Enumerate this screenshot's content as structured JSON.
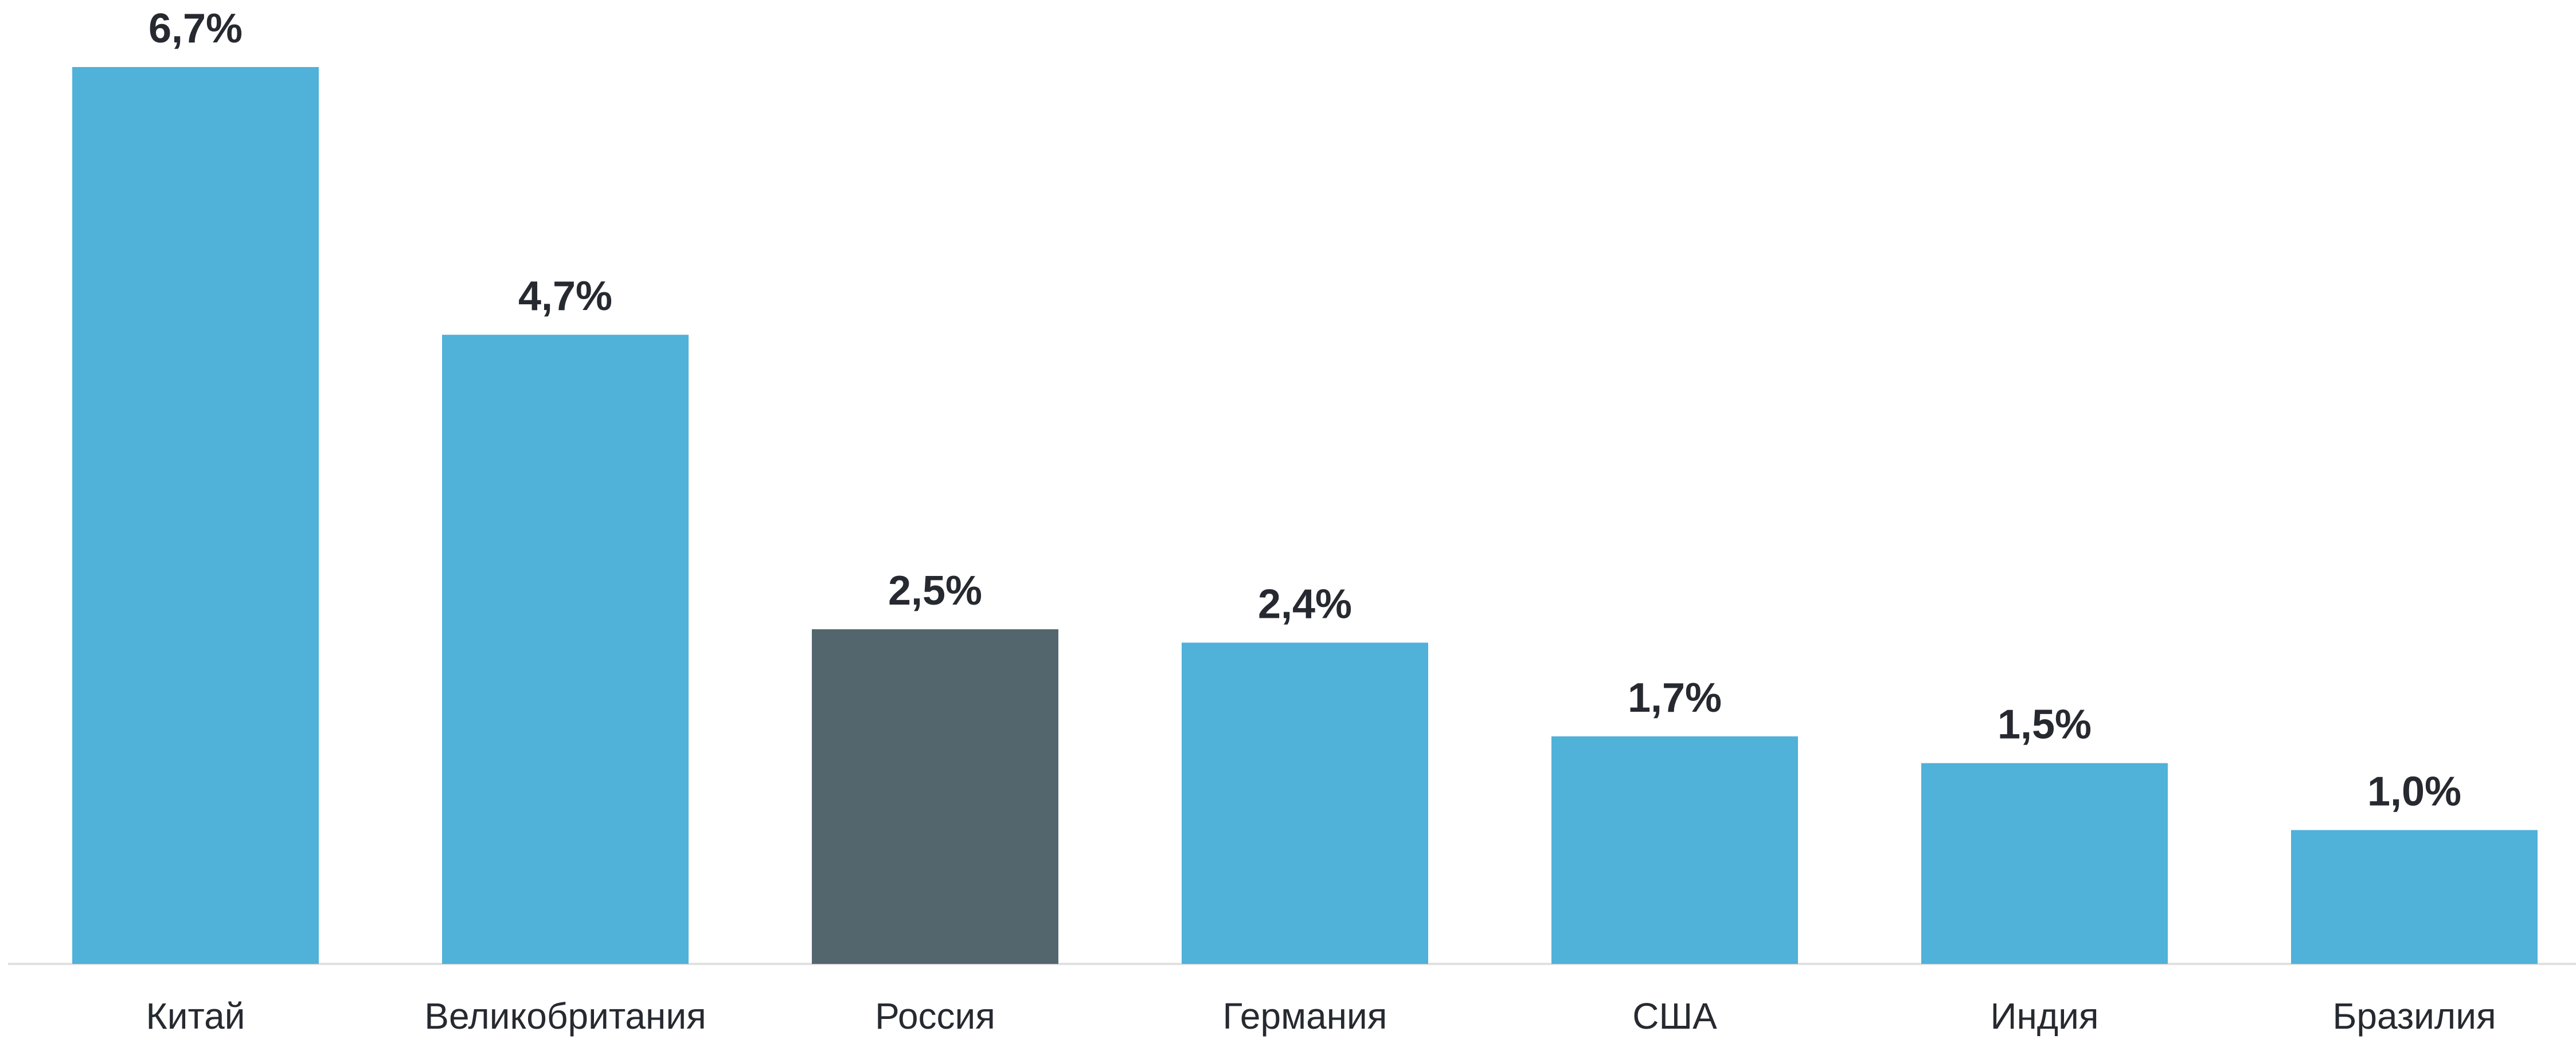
{
  "chart_data": {
    "type": "bar",
    "categories": [
      "Китай",
      "Великобритания",
      "Россия",
      "Германия",
      "США",
      "Индия",
      "Бразилия"
    ],
    "values": [
      6.7,
      4.7,
      2.5,
      2.4,
      1.7,
      1.5,
      1.0
    ],
    "value_labels": [
      "6,7%",
      "4,7%",
      "2,5%",
      "2,4%",
      "1,7%",
      "1,5%",
      "1,0%"
    ],
    "colors": [
      "#50b1d9",
      "#50b1d9",
      "#53666e",
      "#50b1d9",
      "#50b1d9",
      "#50b1d9",
      "#50b1d9"
    ]
  }
}
